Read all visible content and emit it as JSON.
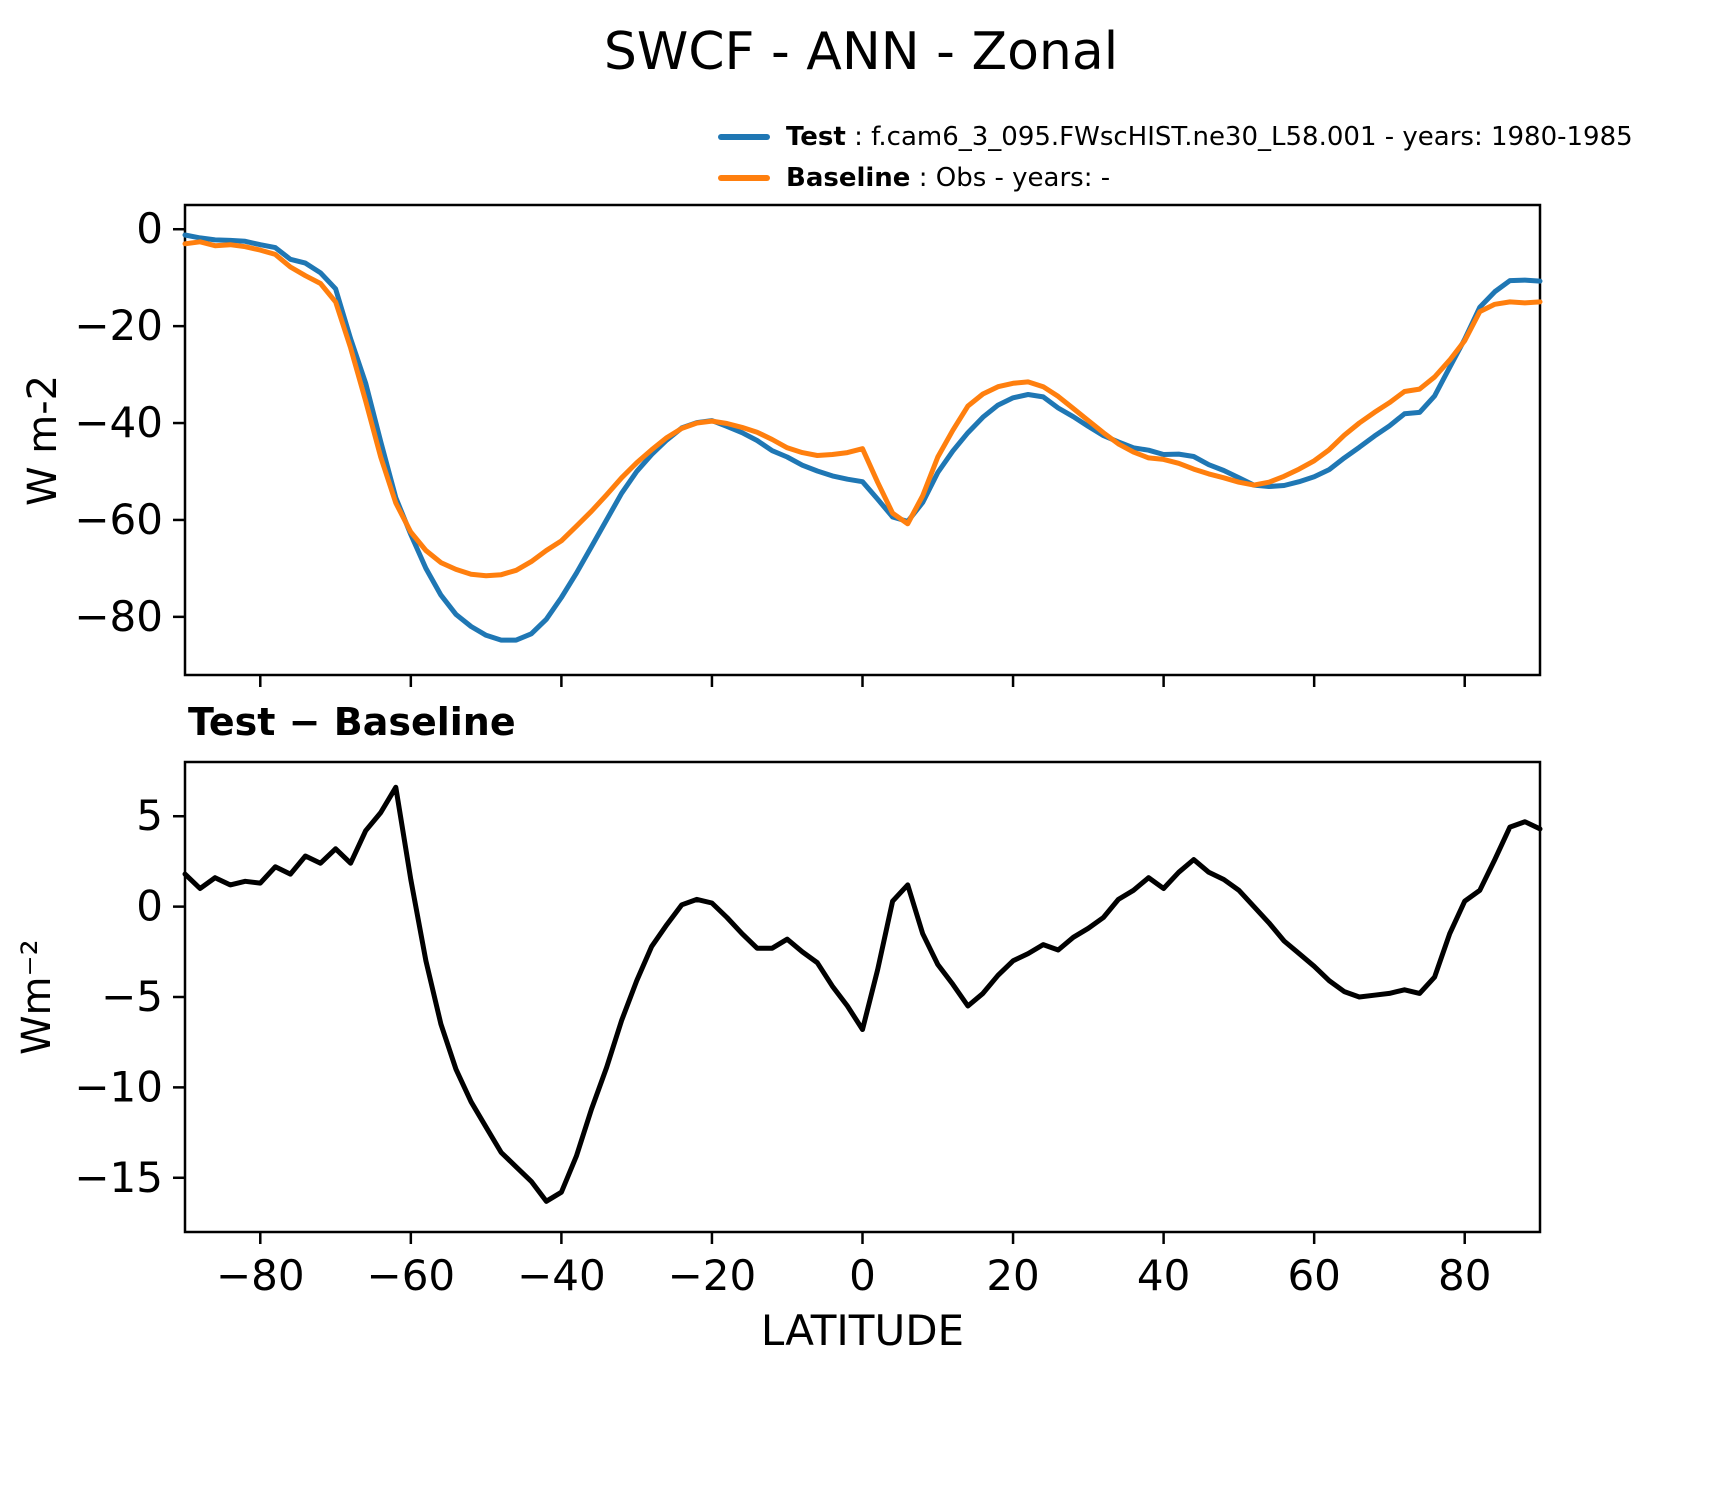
{
  "title": "SWCF - ANN - Zonal",
  "legend": [
    {
      "name": "Test",
      "rest": " : f.cam6_3_095.FWscHIST.ne30_L58.001 - years: 1980-1985",
      "color": "#1f77b4"
    },
    {
      "name": "Baseline",
      "rest": " : Obs - years: -",
      "color": "#ff7f0e"
    }
  ],
  "chart_data": [
    {
      "type": "line",
      "title": "",
      "ylabel": "W m-2",
      "xlabel": "",
      "xlim": [
        -90,
        90
      ],
      "ylim": [
        -92,
        5
      ],
      "xticks": [
        -80,
        -60,
        -40,
        -20,
        0,
        20,
        40,
        60,
        80
      ],
      "yticks": [
        0,
        -20,
        -40,
        -60,
        -80
      ],
      "grid": false,
      "legend_position": "top-right-above-axes",
      "x": [
        -90,
        -88,
        -86,
        -84,
        -82,
        -80,
        -78,
        -76,
        -74,
        -72,
        -70,
        -68,
        -66,
        -64,
        -62,
        -60,
        -58,
        -56,
        -54,
        -52,
        -50,
        -48,
        -46,
        -44,
        -42,
        -40,
        -38,
        -36,
        -34,
        -32,
        -30,
        -28,
        -26,
        -24,
        -22,
        -20,
        -18,
        -16,
        -14,
        -12,
        -10,
        -8,
        -6,
        -4,
        -2,
        0,
        2,
        4,
        6,
        8,
        10,
        12,
        14,
        16,
        18,
        20,
        22,
        24,
        26,
        28,
        30,
        32,
        34,
        36,
        38,
        40,
        42,
        44,
        46,
        48,
        50,
        52,
        54,
        56,
        58,
        60,
        62,
        64,
        66,
        68,
        70,
        72,
        74,
        76,
        78,
        80,
        82,
        84,
        86,
        88,
        90
      ],
      "series": [
        {
          "name": "Test",
          "color": "#1f77b4",
          "values": [
            -1.2,
            -1.8,
            -2.2,
            -2.3,
            -2.5,
            -3.2,
            -3.8,
            -6.2,
            -7.0,
            -9.0,
            -12.3,
            -22.6,
            -31.8,
            -43.8,
            -55.4,
            -63.0,
            -70.0,
            -75.5,
            -79.5,
            -82.0,
            -83.8,
            -84.8,
            -84.8,
            -83.5,
            -80.5,
            -76.0,
            -71.0,
            -65.5,
            -60.0,
            -54.5,
            -50.0,
            -46.5,
            -43.5,
            -41.0,
            -39.9,
            -39.5,
            -40.7,
            -42.0,
            -43.6,
            -45.7,
            -47.0,
            -48.7,
            -49.9,
            -50.9,
            -51.6,
            -52.1,
            -55.7,
            -59.4,
            -60.3,
            -56.4,
            -50.2,
            -45.8,
            -42.0,
            -38.8,
            -36.3,
            -34.8,
            -34.1,
            -34.6,
            -36.9,
            -38.7,
            -40.7,
            -42.6,
            -43.9,
            -45.1,
            -45.6,
            -46.5,
            -46.4,
            -46.9,
            -48.6,
            -49.8,
            -51.3,
            -52.8,
            -53.1,
            -52.9,
            -52.1,
            -51.1,
            -49.6,
            -47.2,
            -45.0,
            -42.7,
            -40.6,
            -38.1,
            -37.8,
            -34.4,
            -28.5,
            -22.7,
            -16.1,
            -12.9,
            -10.6,
            -10.5,
            -10.7
          ]
        },
        {
          "name": "Baseline",
          "color": "#ff7f0e",
          "values": [
            -3.0,
            -2.6,
            -3.4,
            -3.2,
            -3.6,
            -4.3,
            -5.2,
            -7.8,
            -9.6,
            -11.2,
            -15.0,
            -24.5,
            -35.5,
            -47.0,
            -56.5,
            -62.5,
            -66.3,
            -68.8,
            -70.2,
            -71.2,
            -71.5,
            -71.3,
            -70.4,
            -68.6,
            -66.3,
            -64.3,
            -61.3,
            -58.2,
            -54.8,
            -51.3,
            -48.2,
            -45.5,
            -43.0,
            -41.1,
            -40.0,
            -39.6,
            -40.1,
            -40.9,
            -41.9,
            -43.4,
            -45.1,
            -46.1,
            -46.7,
            -46.5,
            -46.1,
            -45.3,
            -52.2,
            -58.6,
            -60.8,
            -55.0,
            -47.0,
            -41.5,
            -36.5,
            -34.0,
            -32.5,
            -31.8,
            -31.5,
            -32.5,
            -34.5,
            -37.0,
            -39.5,
            -42.0,
            -44.3,
            -46.0,
            -47.2,
            -47.5,
            -48.3,
            -49.5,
            -50.5,
            -51.3,
            -52.2,
            -52.8,
            -52.2,
            -51.0,
            -49.5,
            -47.8,
            -45.5,
            -42.5,
            -40.0,
            -37.8,
            -35.8,
            -33.5,
            -33.0,
            -30.5,
            -27.0,
            -23.0,
            -17.0,
            -15.5,
            -15.0,
            -15.2,
            -15.0
          ]
        }
      ]
    },
    {
      "type": "line",
      "title": "Test − Baseline",
      "ylabel": "Wm⁻²",
      "xlabel": "LATITUDE",
      "xlim": [
        -90,
        90
      ],
      "ylim": [
        -18,
        8
      ],
      "xticks": [
        -80,
        -60,
        -40,
        -20,
        0,
        20,
        40,
        60,
        80
      ],
      "yticks": [
        5,
        0,
        -5,
        -10,
        -15
      ],
      "grid": false,
      "x": [
        -90,
        -88,
        -86,
        -84,
        -82,
        -80,
        -78,
        -76,
        -74,
        -72,
        -70,
        -68,
        -66,
        -64,
        -62,
        -60,
        -58,
        -56,
        -54,
        -52,
        -50,
        -48,
        -46,
        -44,
        -42,
        -40,
        -38,
        -36,
        -34,
        -32,
        -30,
        -28,
        -26,
        -24,
        -22,
        -20,
        -18,
        -16,
        -14,
        -12,
        -10,
        -8,
        -6,
        -4,
        -2,
        0,
        2,
        4,
        6,
        8,
        10,
        12,
        14,
        16,
        18,
        20,
        22,
        24,
        26,
        28,
        30,
        32,
        34,
        36,
        38,
        40,
        42,
        44,
        46,
        48,
        50,
        52,
        54,
        56,
        58,
        60,
        62,
        64,
        66,
        68,
        70,
        72,
        74,
        76,
        78,
        80,
        82,
        84,
        86,
        88,
        90
      ],
      "series": [
        {
          "name": "Test − Baseline",
          "color": "#000000",
          "values": [
            1.8,
            1.0,
            1.6,
            1.2,
            1.4,
            1.3,
            2.2,
            1.8,
            2.8,
            2.4,
            3.2,
            2.4,
            4.2,
            5.2,
            6.6,
            1.5,
            -3.0,
            -6.5,
            -9.0,
            -10.8,
            -12.2,
            -13.6,
            -14.4,
            -15.2,
            -16.3,
            -15.8,
            -13.8,
            -11.2,
            -8.9,
            -6.3,
            -4.1,
            -2.2,
            -1.0,
            0.1,
            0.4,
            0.2,
            -0.6,
            -1.5,
            -2.3,
            -2.3,
            -1.8,
            -2.5,
            -3.1,
            -4.4,
            -5.5,
            -6.8,
            -3.5,
            0.3,
            1.2,
            -1.5,
            -3.2,
            -4.3,
            -5.5,
            -4.8,
            -3.8,
            -3.0,
            -2.6,
            -2.1,
            -2.4,
            -1.7,
            -1.2,
            -0.6,
            0.4,
            0.9,
            1.6,
            1.0,
            1.9,
            2.6,
            1.9,
            1.5,
            0.9,
            0.0,
            -0.9,
            -1.9,
            -2.6,
            -3.3,
            -4.1,
            -4.7,
            -5.0,
            -4.9,
            -4.8,
            -4.6,
            -4.8,
            -3.9,
            -1.5,
            0.3,
            0.9,
            2.6,
            4.4,
            4.7,
            4.3
          ]
        }
      ]
    }
  ]
}
